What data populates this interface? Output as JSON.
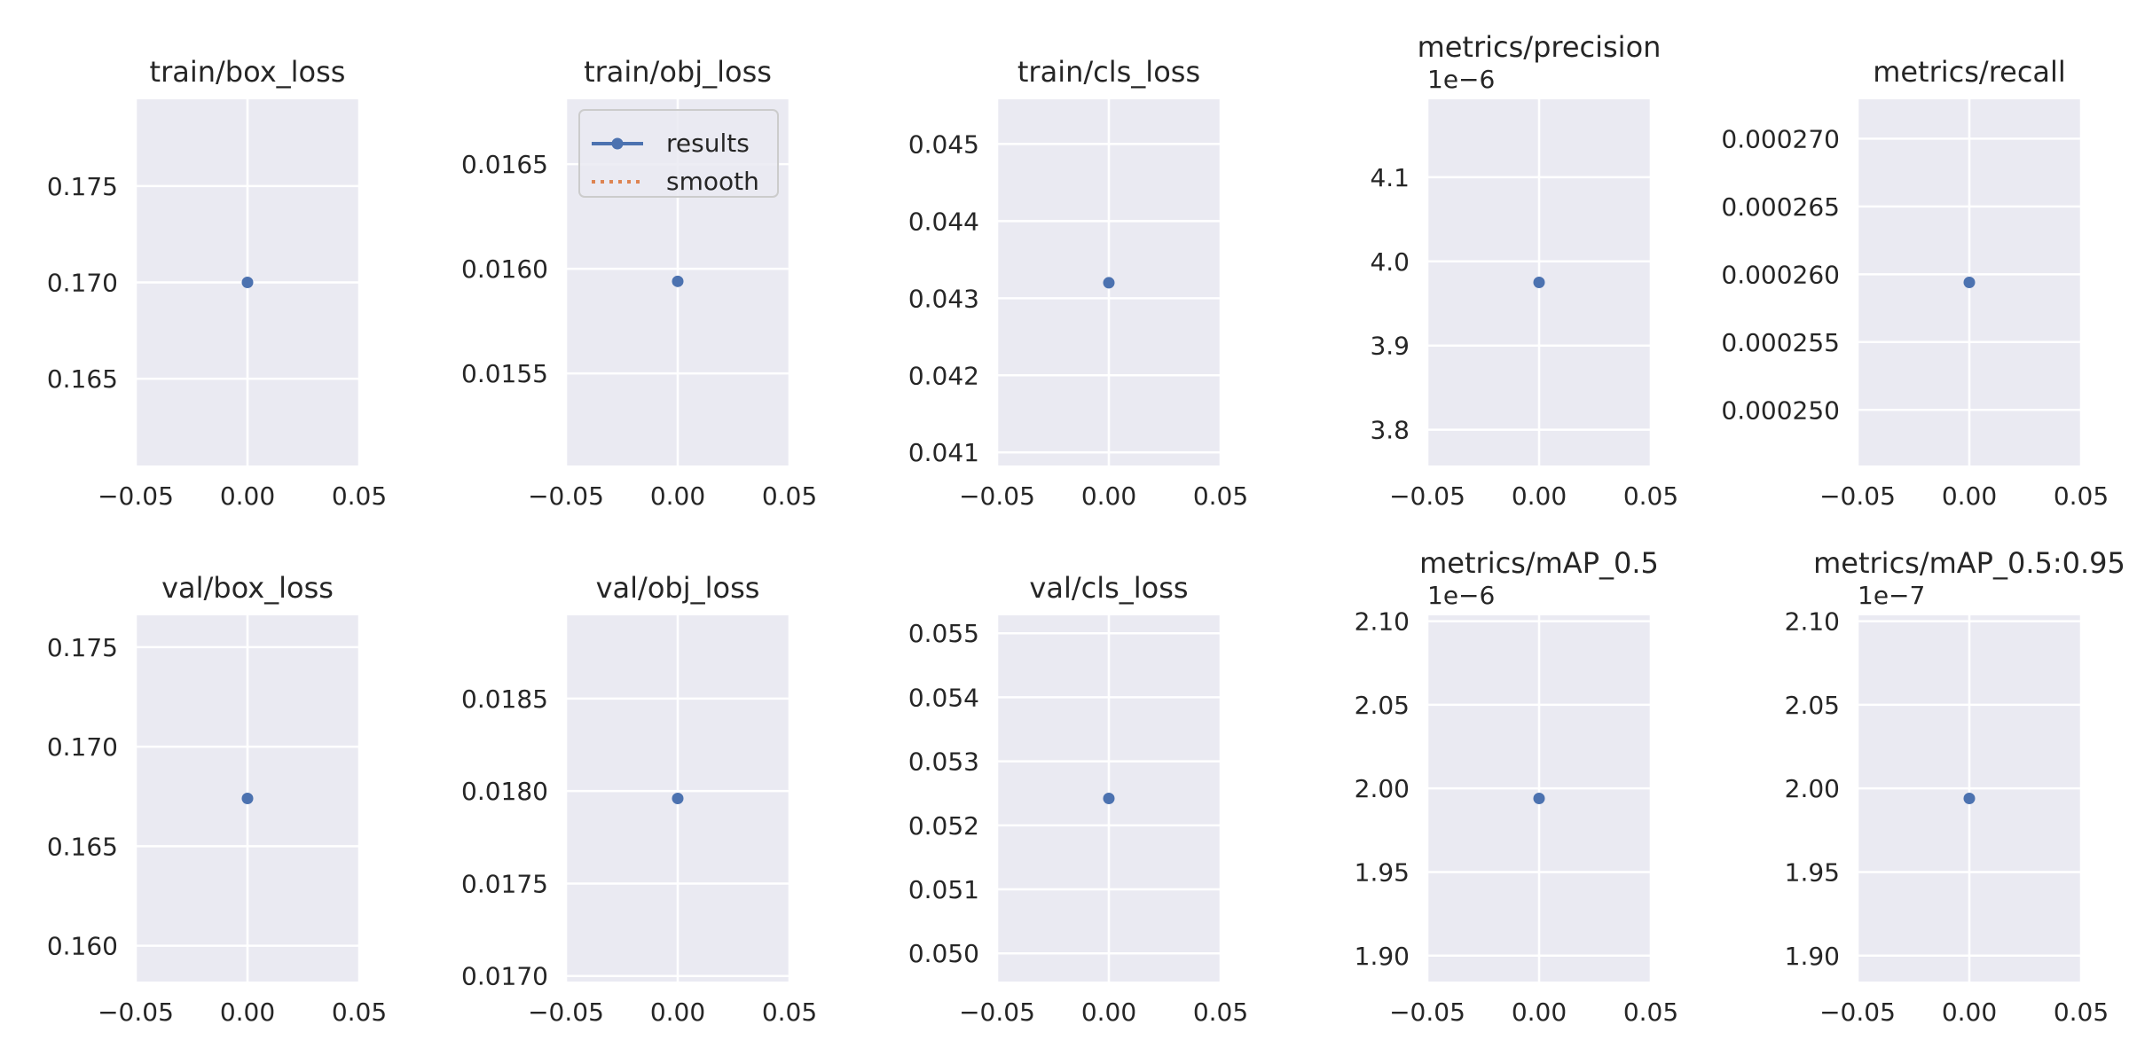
{
  "legend": {
    "results_label": "results",
    "smooth_label": "smooth"
  },
  "colors": {
    "results": "#4c72b0",
    "smooth": "#dd8452",
    "panel_bg": "#eaeaf2",
    "grid": "#ffffff"
  },
  "chart_data": [
    {
      "type": "line",
      "title": "train/box_loss",
      "x": [
        0.0
      ],
      "y": [
        0.17
      ],
      "xlim": [
        -0.05,
        0.05
      ],
      "ylim": [
        0.1605,
        0.1795
      ],
      "xticks": [
        -0.05,
        0.0,
        0.05
      ],
      "xtick_labels": [
        "−0.05",
        "0.00",
        "0.05"
      ],
      "yticks": [
        0.165,
        0.17,
        0.175
      ],
      "ytick_labels": [
        "0.165",
        "0.170",
        "0.175"
      ],
      "offset_text": ""
    },
    {
      "type": "line",
      "title": "train/obj_loss",
      "x": [
        0.0
      ],
      "y": [
        0.01594
      ],
      "xlim": [
        -0.05,
        0.05
      ],
      "ylim": [
        0.01506,
        0.01681
      ],
      "xticks": [
        -0.05,
        0.0,
        0.05
      ],
      "xtick_labels": [
        "−0.05",
        "0.00",
        "0.05"
      ],
      "yticks": [
        0.0155,
        0.016,
        0.0165
      ],
      "ytick_labels": [
        "0.0155",
        "0.0160",
        "0.0165"
      ],
      "offset_text": "",
      "legend": true
    },
    {
      "type": "line",
      "title": "train/cls_loss",
      "x": [
        0.0
      ],
      "y": [
        0.0432
      ],
      "xlim": [
        -0.05,
        0.05
      ],
      "ylim": [
        0.04083,
        0.04558
      ],
      "xticks": [
        -0.05,
        0.0,
        0.05
      ],
      "xtick_labels": [
        "−0.05",
        "0.00",
        "0.05"
      ],
      "yticks": [
        0.041,
        0.042,
        0.043,
        0.044,
        0.045
      ],
      "ytick_labels": [
        "0.041",
        "0.042",
        "0.043",
        "0.044",
        "0.045"
      ],
      "offset_text": ""
    },
    {
      "type": "line",
      "title": "metrics/precision",
      "x": [
        0.0
      ],
      "y": [
        3.975
      ],
      "xlim": [
        -0.05,
        0.05
      ],
      "ylim": [
        3.7575,
        4.1925
      ],
      "xticks": [
        -0.05,
        0.0,
        0.05
      ],
      "xtick_labels": [
        "−0.05",
        "0.00",
        "0.05"
      ],
      "yticks": [
        3.8,
        3.9,
        4.0,
        4.1
      ],
      "ytick_labels": [
        "3.8",
        "3.9",
        "4.0",
        "4.1"
      ],
      "offset_text": "1e−6"
    },
    {
      "type": "line",
      "title": "metrics/recall",
      "x": [
        0.0
      ],
      "y": [
        0.0002594
      ],
      "xlim": [
        -0.05,
        0.05
      ],
      "ylim": [
        0.0002459,
        0.0002729
      ],
      "xticks": [
        -0.05,
        0.0,
        0.05
      ],
      "xtick_labels": [
        "−0.05",
        "0.00",
        "0.05"
      ],
      "yticks": [
        0.00025,
        0.000255,
        0.00026,
        0.000265,
        0.00027
      ],
      "ytick_labels": [
        "0.000250",
        "0.000255",
        "0.000260",
        "0.000265",
        "0.000270"
      ],
      "offset_text": ""
    },
    {
      "type": "line",
      "title": "val/box_loss",
      "x": [
        0.0
      ],
      "y": [
        0.1674
      ],
      "xlim": [
        -0.05,
        0.05
      ],
      "ylim": [
        0.1582,
        0.1766
      ],
      "xticks": [
        -0.05,
        0.0,
        0.05
      ],
      "xtick_labels": [
        "−0.05",
        "0.00",
        "0.05"
      ],
      "yticks": [
        0.16,
        0.165,
        0.17,
        0.175
      ],
      "ytick_labels": [
        "0.160",
        "0.165",
        "0.170",
        "0.175"
      ],
      "offset_text": ""
    },
    {
      "type": "line",
      "title": "val/obj_loss",
      "x": [
        0.0
      ],
      "y": [
        0.01796
      ],
      "xlim": [
        -0.05,
        0.05
      ],
      "ylim": [
        0.01697,
        0.01895
      ],
      "xticks": [
        -0.05,
        0.0,
        0.05
      ],
      "xtick_labels": [
        "−0.05",
        "0.00",
        "0.05"
      ],
      "yticks": [
        0.017,
        0.0175,
        0.018,
        0.0185
      ],
      "ytick_labels": [
        "0.0170",
        "0.0175",
        "0.0180",
        "0.0185"
      ],
      "offset_text": ""
    },
    {
      "type": "line",
      "title": "val/cls_loss",
      "x": [
        0.0
      ],
      "y": [
        0.05242
      ],
      "xlim": [
        -0.05,
        0.05
      ],
      "ylim": [
        0.04956,
        0.05528
      ],
      "xticks": [
        -0.05,
        0.0,
        0.05
      ],
      "xtick_labels": [
        "−0.05",
        "0.00",
        "0.05"
      ],
      "yticks": [
        0.05,
        0.051,
        0.052,
        0.053,
        0.054,
        0.055
      ],
      "ytick_labels": [
        "0.050",
        "0.051",
        "0.052",
        "0.053",
        "0.054",
        "0.055"
      ],
      "offset_text": ""
    },
    {
      "type": "line",
      "title": "metrics/mAP_0.5",
      "x": [
        0.0
      ],
      "y": [
        1.994
      ],
      "xlim": [
        -0.05,
        0.05
      ],
      "ylim": [
        1.8845,
        2.1035
      ],
      "xticks": [
        -0.05,
        0.0,
        0.05
      ],
      "xtick_labels": [
        "−0.05",
        "0.00",
        "0.05"
      ],
      "yticks": [
        1.9,
        1.95,
        2.0,
        2.05,
        2.1
      ],
      "ytick_labels": [
        "1.90",
        "1.95",
        "2.00",
        "2.05",
        "2.10"
      ],
      "offset_text": "1e−6"
    },
    {
      "type": "line",
      "title": "metrics/mAP_0.5:0.95",
      "x": [
        0.0
      ],
      "y": [
        1.994
      ],
      "xlim": [
        -0.05,
        0.05
      ],
      "ylim": [
        1.8845,
        2.1035
      ],
      "xticks": [
        -0.05,
        0.0,
        0.05
      ],
      "xtick_labels": [
        "−0.05",
        "0.00",
        "0.05"
      ],
      "yticks": [
        1.9,
        1.95,
        2.0,
        2.05,
        2.1
      ],
      "ytick_labels": [
        "1.90",
        "1.95",
        "2.00",
        "2.05",
        "2.10"
      ],
      "offset_text": "1e−7"
    }
  ]
}
